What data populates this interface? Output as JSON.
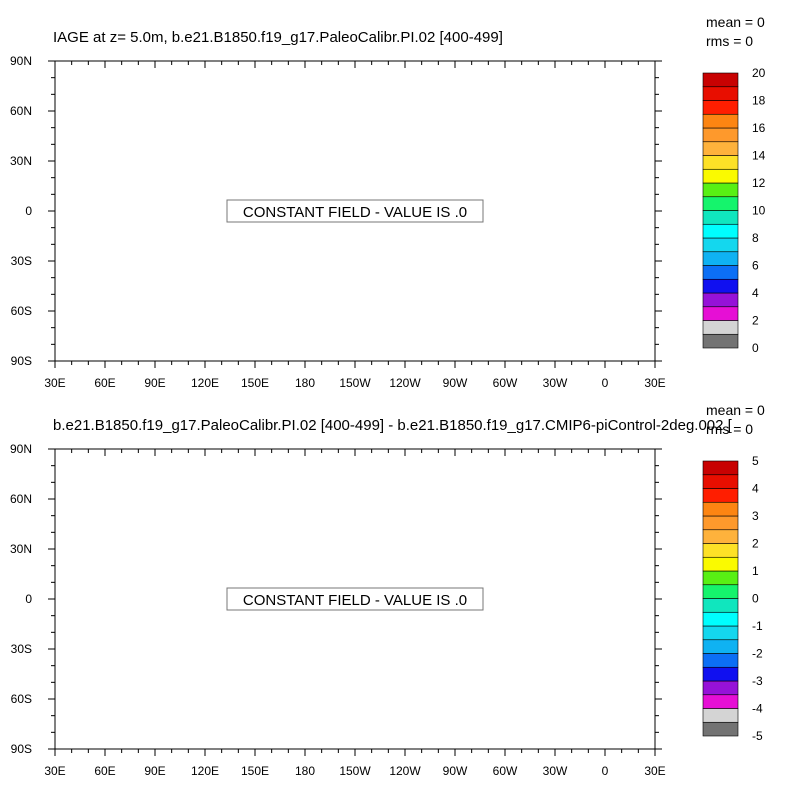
{
  "colormap": [
    "#737373",
    "#d4d4d4",
    "#e60fd5",
    "#9612d8",
    "#1010f0",
    "#0c6ff5",
    "#0fb2f2",
    "#14d7ee",
    "#00fefe",
    "#10e6be",
    "#15f46c",
    "#58f014",
    "#fafa00",
    "#fde127",
    "#feb23c",
    "#fe992c",
    "#fd8512",
    "#ff1e00",
    "#e80e00",
    "#c80202"
  ],
  "chart_data": [
    {
      "type": "heatmap",
      "title": "IAGE at z=   5.0m, b.e21.B1850.f19_g17.PaleoCalibr.PI.02 [400-499]",
      "mean_label": "mean = 0",
      "rms_label": "rms = 0",
      "mean": 0,
      "rms": 0,
      "message": "CONSTANT FIELD - VALUE IS .0",
      "constant_value": 0.0,
      "x_ticks": [
        "30E",
        "60E",
        "90E",
        "120E",
        "150E",
        "180",
        "150W",
        "120W",
        "90W",
        "60W",
        "30W",
        "0",
        "30E"
      ],
      "y_ticks": [
        "90N",
        "60N",
        "30N",
        "0",
        "30S",
        "60S",
        "90S"
      ],
      "colorbar": {
        "min": 0,
        "max": 20,
        "step": 1,
        "labels": [
          "0",
          "2",
          "4",
          "6",
          "8",
          "10",
          "12",
          "14",
          "16",
          "18",
          "20"
        ]
      }
    },
    {
      "type": "heatmap",
      "title": "b.e21.B1850.f19_g17.PaleoCalibr.PI.02 [400-499] - b.e21.B1850.f19_g17.CMIP6-piControl-2deg.002 [",
      "mean_label": "mean = 0",
      "rms_label": "rms = 0",
      "mean": 0,
      "rms": 0,
      "message": "CONSTANT FIELD - VALUE IS .0",
      "constant_value": 0.0,
      "x_ticks": [
        "30E",
        "60E",
        "90E",
        "120E",
        "150E",
        "180",
        "150W",
        "120W",
        "90W",
        "60W",
        "30W",
        "0",
        "30E"
      ],
      "y_ticks": [
        "90N",
        "60N",
        "30N",
        "0",
        "30S",
        "60S",
        "90S"
      ],
      "colorbar": {
        "min": -5,
        "max": 5,
        "step": 0.5,
        "labels": [
          "-5",
          "-4",
          "-3",
          "-2",
          "-1",
          "0",
          "1",
          "2",
          "3",
          "4",
          "5"
        ]
      }
    }
  ]
}
